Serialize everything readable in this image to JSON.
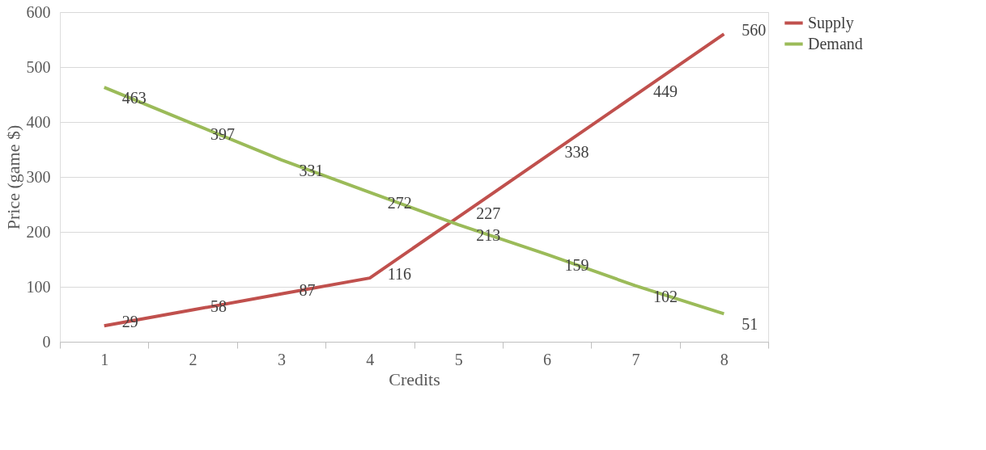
{
  "chart_data": {
    "type": "line",
    "xlabel": "Credits",
    "ylabel": "Price (game $)",
    "categories": [
      "1",
      "2",
      "3",
      "4",
      "5",
      "6",
      "7",
      "8"
    ],
    "series": [
      {
        "name": "Supply",
        "color": "#c0504d",
        "values": [
          29,
          58,
          87,
          116,
          227,
          338,
          449,
          560
        ]
      },
      {
        "name": "Demand",
        "color": "#9bbb59",
        "values": [
          463,
          397,
          331,
          272,
          213,
          159,
          102,
          51
        ]
      }
    ],
    "ylim": [
      0,
      600
    ],
    "yticks": [
      0,
      100,
      200,
      300,
      400,
      500,
      600
    ],
    "grid": "y",
    "legend": "right",
    "data_labels": true,
    "marker": "none",
    "line_style": "solid"
  }
}
